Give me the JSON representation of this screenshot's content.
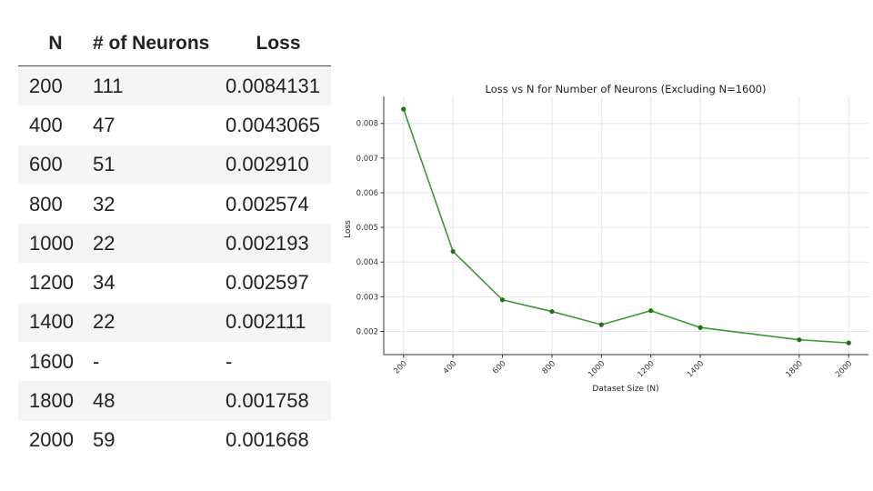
{
  "table": {
    "headers": [
      "N",
      "# of Neurons",
      "Loss"
    ],
    "rows": [
      [
        "200",
        "111",
        "0.0084131"
      ],
      [
        "400",
        "47",
        "0.0043065"
      ],
      [
        "600",
        "51",
        "0.002910"
      ],
      [
        "800",
        "32",
        "0.002574"
      ],
      [
        "1000",
        "22",
        "0.002193"
      ],
      [
        "1200",
        "34",
        "0.002597"
      ],
      [
        "1400",
        "22",
        "0.002111"
      ],
      [
        "1600",
        "-",
        "-"
      ],
      [
        "1800",
        "48",
        "0.001758"
      ],
      [
        "2000",
        "59",
        "0.001668"
      ]
    ]
  },
  "chart_data": {
    "type": "line",
    "title": "Loss vs N for Number of Neurons (Excluding N=1600)",
    "xlabel": "Dataset Size (N)",
    "ylabel": "Loss",
    "x": [
      200,
      400,
      600,
      800,
      1000,
      1200,
      1400,
      1800,
      2000
    ],
    "series": [
      {
        "values": [
          0.0084131,
          0.0043065,
          0.00291,
          0.002574,
          0.002193,
          0.002597,
          0.002111,
          0.001758,
          0.001668
        ],
        "color": "#3a9a32"
      }
    ],
    "x_ticks": [
      "200",
      "400",
      "600",
      "800",
      "1000",
      "1200",
      "1400",
      "1800",
      "2000"
    ],
    "y_ticks": [
      "0.002",
      "0.003",
      "0.004",
      "0.005",
      "0.006",
      "0.007",
      "0.008"
    ],
    "xlim": [
      120,
      2080
    ],
    "ylim": [
      0.00133,
      0.00878
    ],
    "grid": true,
    "marker_color": "#1f6e18"
  }
}
